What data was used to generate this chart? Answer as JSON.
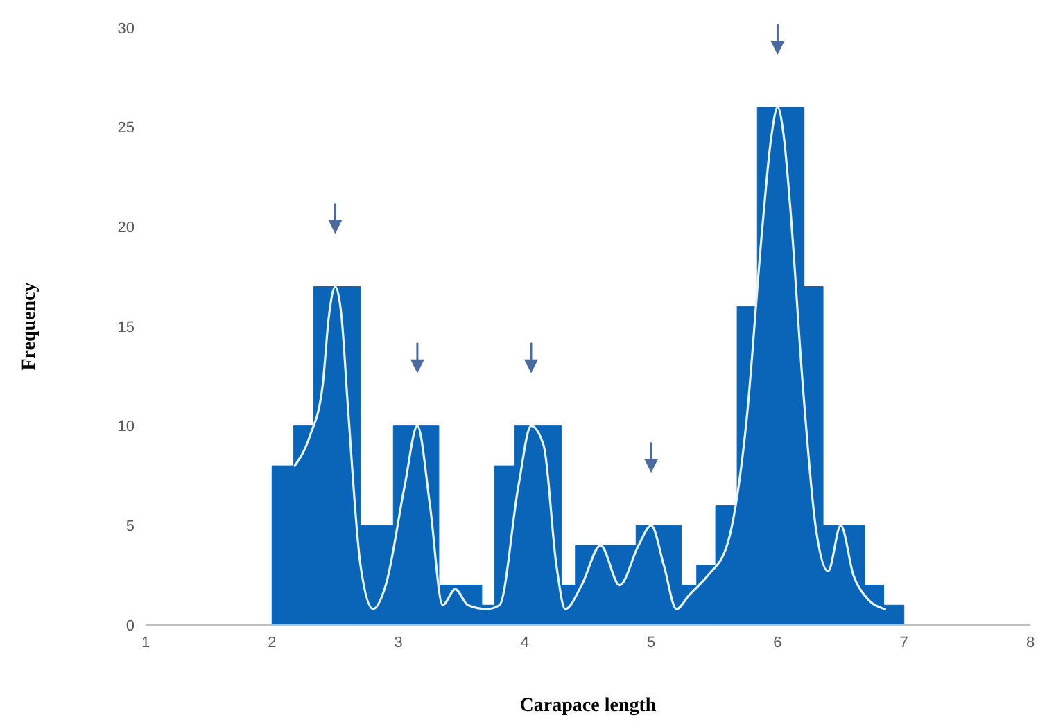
{
  "chart_data": {
    "type": "histogram",
    "xlabel": "Carapace length",
    "ylabel": "Frequency",
    "xlim": [
      1,
      8
    ],
    "xticks": [
      1,
      2,
      3,
      4,
      5,
      6,
      7,
      8
    ],
    "ylim": [
      0,
      30
    ],
    "yticks": [
      0,
      5,
      10,
      15,
      20,
      25,
      30
    ],
    "marker": "none",
    "series": [
      {
        "type": "histogram",
        "color": "#0a64b8",
        "bins": [
          2.0,
          2.17,
          2.33,
          2.7,
          2.96,
          3.32,
          3.66,
          3.76,
          3.92,
          4.29,
          4.4,
          4.88,
          5.24,
          5.36,
          5.51,
          5.68,
          5.84,
          6.21,
          6.36,
          6.69,
          6.84,
          7.0
        ],
        "values": [
          8,
          10,
          17,
          5,
          10,
          2,
          1,
          8,
          10,
          2,
          4,
          5,
          2,
          3,
          6,
          16,
          26,
          17,
          5,
          2,
          1
        ]
      },
      {
        "type": "line",
        "color": "#e6f4f8",
        "x": [
          2.18,
          2.3,
          2.4,
          2.45,
          2.5,
          2.55,
          2.6,
          2.7,
          2.8,
          2.9,
          3.05,
          3.15,
          3.25,
          3.35,
          3.45,
          3.55,
          3.7,
          3.8,
          3.95,
          4.05,
          4.15,
          4.25,
          4.32,
          4.45,
          4.6,
          4.75,
          4.9,
          5.0,
          5.1,
          5.2,
          5.3,
          5.45,
          5.6,
          5.75,
          5.88,
          5.95,
          6.0,
          6.05,
          6.1,
          6.2,
          6.3,
          6.4,
          6.5,
          6.6,
          6.7,
          6.85
        ],
        "values": [
          8,
          9.5,
          12,
          15.5,
          17,
          15.5,
          11,
          3,
          0.8,
          2,
          7,
          10,
          6,
          1,
          1.8,
          1,
          0.8,
          1,
          7,
          10,
          9,
          3,
          0.8,
          2,
          4,
          2,
          4,
          5,
          3,
          0.8,
          1.5,
          2.5,
          4,
          10,
          20,
          24.5,
          26,
          24.5,
          21,
          12,
          5,
          2.7,
          5,
          2.5,
          1.4,
          0.8
        ]
      }
    ]
  }
}
